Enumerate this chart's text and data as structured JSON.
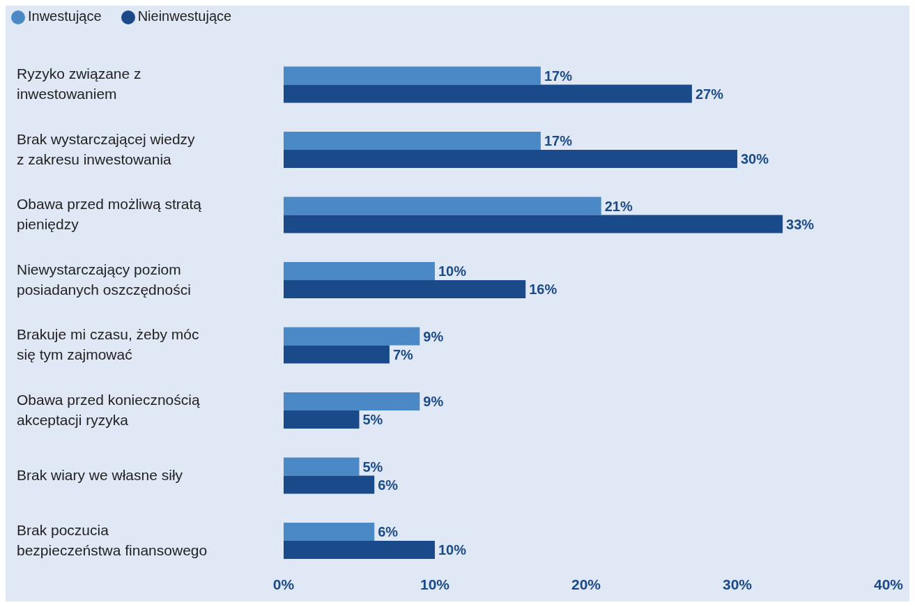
{
  "chart_data": {
    "type": "bar",
    "orientation": "horizontal",
    "categories": [
      "Ryzyko związane z inwestowaniem",
      "Brak wystarczającej wiedzy z zakresu inwestowania",
      "Obawa przed możliwą stratą pieniędzy",
      "Niewystarczający poziom posiadanych oszczędności",
      "Brakuje mi czasu, żeby móc się tym zajmować",
      "Obawa przed koniecznością akceptacji ryzyka",
      "Brak wiary we własne siły",
      "Brak poczucia bezpieczeństwa finansowego"
    ],
    "series": [
      {
        "name": "Inwestujące",
        "color": "#4a88c6",
        "values": [
          17,
          17,
          21,
          10,
          9,
          9,
          5,
          6
        ],
        "value_labels": [
          "17%",
          "17%",
          "21%",
          "10%",
          "9%",
          "9%",
          "5%",
          "6%"
        ]
      },
      {
        "name": "Nieinwestujące",
        "color": "#1b4a8b",
        "values": [
          27,
          30,
          33,
          16,
          7,
          5,
          6,
          10
        ],
        "value_labels": [
          "27%",
          "30%",
          "33%",
          "16%",
          "7%",
          "5%",
          "6%",
          "10%"
        ]
      }
    ],
    "xlim": [
      0,
      40
    ],
    "xticks": [
      {
        "value": 0,
        "label": "0%"
      },
      {
        "value": 10,
        "label": "10%"
      },
      {
        "value": 20,
        "label": "20%"
      },
      {
        "value": 30,
        "label": "30%"
      },
      {
        "value": 40,
        "label": "40%"
      }
    ],
    "grid": false,
    "legend": "top left"
  }
}
